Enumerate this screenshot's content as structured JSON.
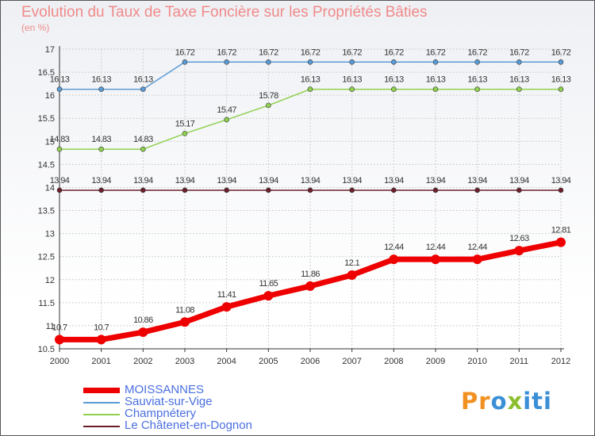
{
  "title": "Evolution du Taux de Taxe Foncière sur les Propriétés Bâties",
  "subtitle": "(en %)",
  "logo": {
    "p1": "Pr",
    "p2": "o",
    "p3": "x",
    "p4": "iti"
  },
  "colors": {
    "background": "#ffffff",
    "grid": "#cccccc",
    "axis": "#333333",
    "title": "#f08a8a"
  },
  "chart_data": {
    "type": "line",
    "title": "Evolution du Taux de Taxe Foncière sur les Propriétés Bâties",
    "ylabel": "(en %)",
    "x": [
      "2000",
      "2001",
      "2002",
      "2003",
      "2004",
      "2005",
      "2006",
      "2007",
      "2008",
      "2009",
      "2010",
      "2011",
      "2012"
    ],
    "ylim": [
      10.5,
      17
    ],
    "yticks": [
      "10.5",
      "11",
      "11.5",
      "12",
      "12.5",
      "13",
      "13.5",
      "14",
      "14.5",
      "15",
      "15.5",
      "16",
      "16.5",
      "17"
    ],
    "grid": true,
    "legend_position": "bottom-left",
    "series": [
      {
        "name": "MOISSANNES",
        "color": "#ee0000",
        "values": [
          10.7,
          10.7,
          10.86,
          11.08,
          11.41,
          11.65,
          11.86,
          12.1,
          12.44,
          12.44,
          12.44,
          12.63,
          12.81
        ],
        "labels": [
          "10.7",
          "10.7",
          "10.86",
          "11.08",
          "11.41",
          "11.65",
          "11.86",
          "12.1",
          "12.44",
          "12.44",
          "12.44",
          "12.63",
          "12.81"
        ]
      },
      {
        "name": "Sauviat-sur-Vige",
        "color": "#5b9bd5",
        "values": [
          16.13,
          16.13,
          16.13,
          16.72,
          16.72,
          16.72,
          16.72,
          16.72,
          16.72,
          16.72,
          16.72,
          16.72,
          16.72
        ],
        "labels": [
          "16.13",
          "16.13",
          "16.13",
          "16.72",
          "16.72",
          "16.72",
          "16.72",
          "16.72",
          "16.72",
          "16.72",
          "16.72",
          "16.72",
          "16.72"
        ]
      },
      {
        "name": "Champnétery",
        "color": "#8fd14f",
        "values": [
          14.83,
          14.83,
          14.83,
          15.17,
          15.47,
          15.78,
          16.13,
          16.13,
          16.13,
          16.13,
          16.13,
          16.13,
          16.13
        ],
        "labels": [
          "14.83",
          "14.83",
          "14.83",
          "15.17",
          "15.47",
          "15.78",
          "16.13",
          "16.13",
          "16.13",
          "16.13",
          "16.13",
          "16.13",
          "16.13"
        ]
      },
      {
        "name": "Le Châtenet-en-Dognon",
        "color": "#6b1f2a",
        "values": [
          13.94,
          13.94,
          13.94,
          13.94,
          13.94,
          13.94,
          13.94,
          13.94,
          13.94,
          13.94,
          13.94,
          13.94,
          13.94
        ],
        "labels": [
          "13.94",
          "13.94",
          "13.94",
          "13.94",
          "13.94",
          "13.94",
          "13.94",
          "13.94",
          "13.94",
          "13.94",
          "13.94",
          "13.94",
          "13.94"
        ]
      }
    ]
  }
}
